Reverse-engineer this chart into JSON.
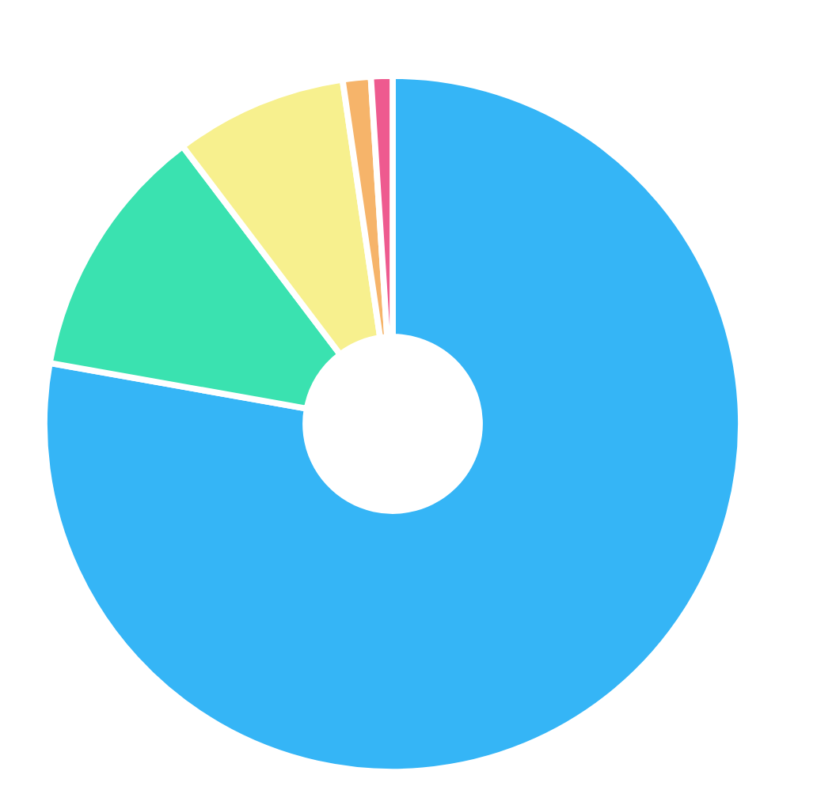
{
  "chart_data": {
    "type": "donut",
    "categories": [
      null,
      null,
      null,
      null,
      null
    ],
    "values": [
      77.8,
      11.9,
      8.0,
      1.3,
      1.0
    ],
    "colors": [
      "#35b5f6",
      "#3ae2b0",
      "#f7f08e",
      "#f6b46a",
      "#ee5a8f"
    ]
  }
}
